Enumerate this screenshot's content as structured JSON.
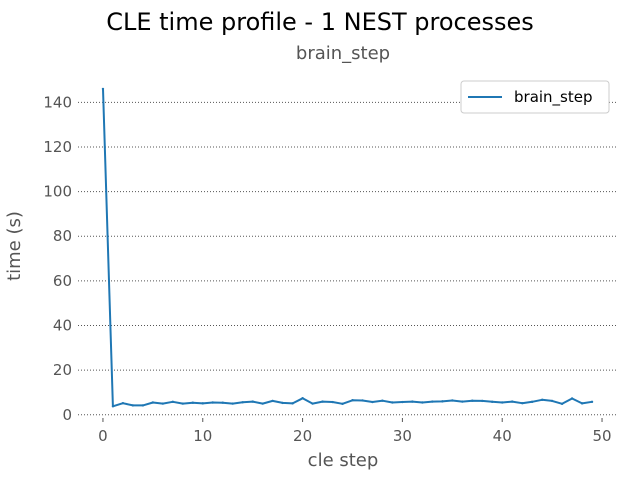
{
  "chart_data": {
    "type": "line",
    "title": "CLE time profile - 1 NEST processes",
    "subtitle": "brain_step",
    "xlabel": "cle step",
    "ylabel": "time (s)",
    "xlim": [
      -2.5,
      51.5
    ],
    "ylim": [
      -1,
      150
    ],
    "xticks": [
      0,
      10,
      20,
      30,
      40,
      50
    ],
    "yticks": [
      0,
      20,
      40,
      60,
      80,
      100,
      120,
      140
    ],
    "grid": "horizontal-dotted",
    "legend_position": "top-right",
    "line_color": "#1f77b4",
    "x": [
      0,
      1,
      2,
      3,
      4,
      5,
      6,
      7,
      8,
      9,
      10,
      11,
      12,
      13,
      14,
      15,
      16,
      17,
      18,
      19,
      20,
      21,
      22,
      23,
      24,
      25,
      26,
      27,
      28,
      29,
      30,
      31,
      32,
      33,
      34,
      35,
      36,
      37,
      38,
      39,
      40,
      41,
      42,
      43,
      44,
      45,
      46,
      47,
      48,
      49
    ],
    "series": [
      {
        "name": "brain_step",
        "values": [
          146,
          3.8,
          5.2,
          4.2,
          4.2,
          5.5,
          5.0,
          5.8,
          5.0,
          5.4,
          5.1,
          5.5,
          5.4,
          5.0,
          5.6,
          5.9,
          5.0,
          6.2,
          5.3,
          5.1,
          7.4,
          5.0,
          5.9,
          5.7,
          4.9,
          6.5,
          6.4,
          5.7,
          6.3,
          5.5,
          5.7,
          5.9,
          5.5,
          5.9,
          6.0,
          6.4,
          5.9,
          6.3,
          6.2,
          5.8,
          5.5,
          5.9,
          5.2,
          5.8,
          6.7,
          6.2,
          4.9,
          7.3,
          5.1,
          5.8
        ]
      }
    ]
  }
}
